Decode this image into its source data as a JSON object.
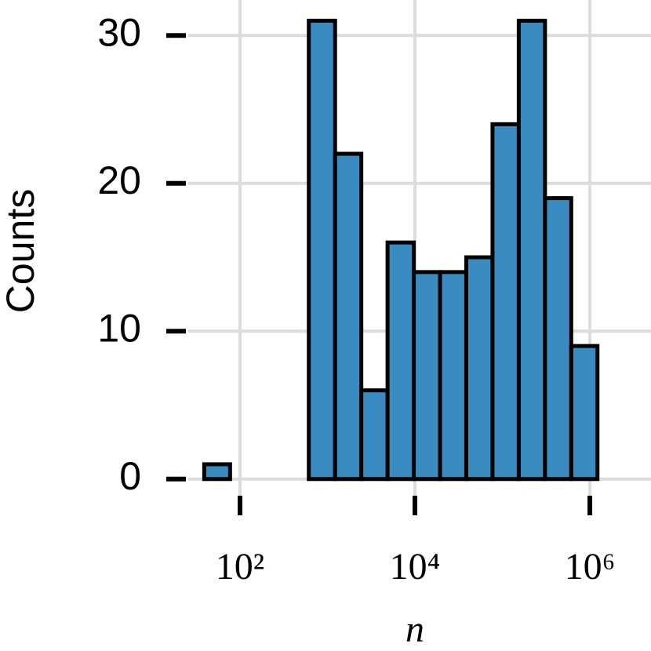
{
  "chart_data": {
    "type": "histogram",
    "xlabel": "n",
    "ylabel": "Counts",
    "bins": [
      39,
      77,
      154,
      307,
      612,
      1222,
      2438,
      4864,
      9705,
      19364,
      38637,
      77090,
      153815,
      306902,
      612350,
      1221800
    ],
    "values": [
      1,
      0,
      0,
      0,
      31,
      22,
      6,
      16,
      14,
      14,
      15,
      24,
      31,
      19,
      9
    ],
    "color": "#3a8bc2",
    "xscale": "log",
    "grid": true,
    "xlim": [
      25.6,
      5000000
    ],
    "ylim": [
      -1.55,
      32.4
    ],
    "xticks": [
      {
        "value": 100,
        "label": "10²"
      },
      {
        "value": 10000,
        "label": "10⁴"
      },
      {
        "value": 1000000,
        "label": "10⁶"
      }
    ],
    "yticks": [
      0,
      10,
      20,
      30
    ]
  }
}
